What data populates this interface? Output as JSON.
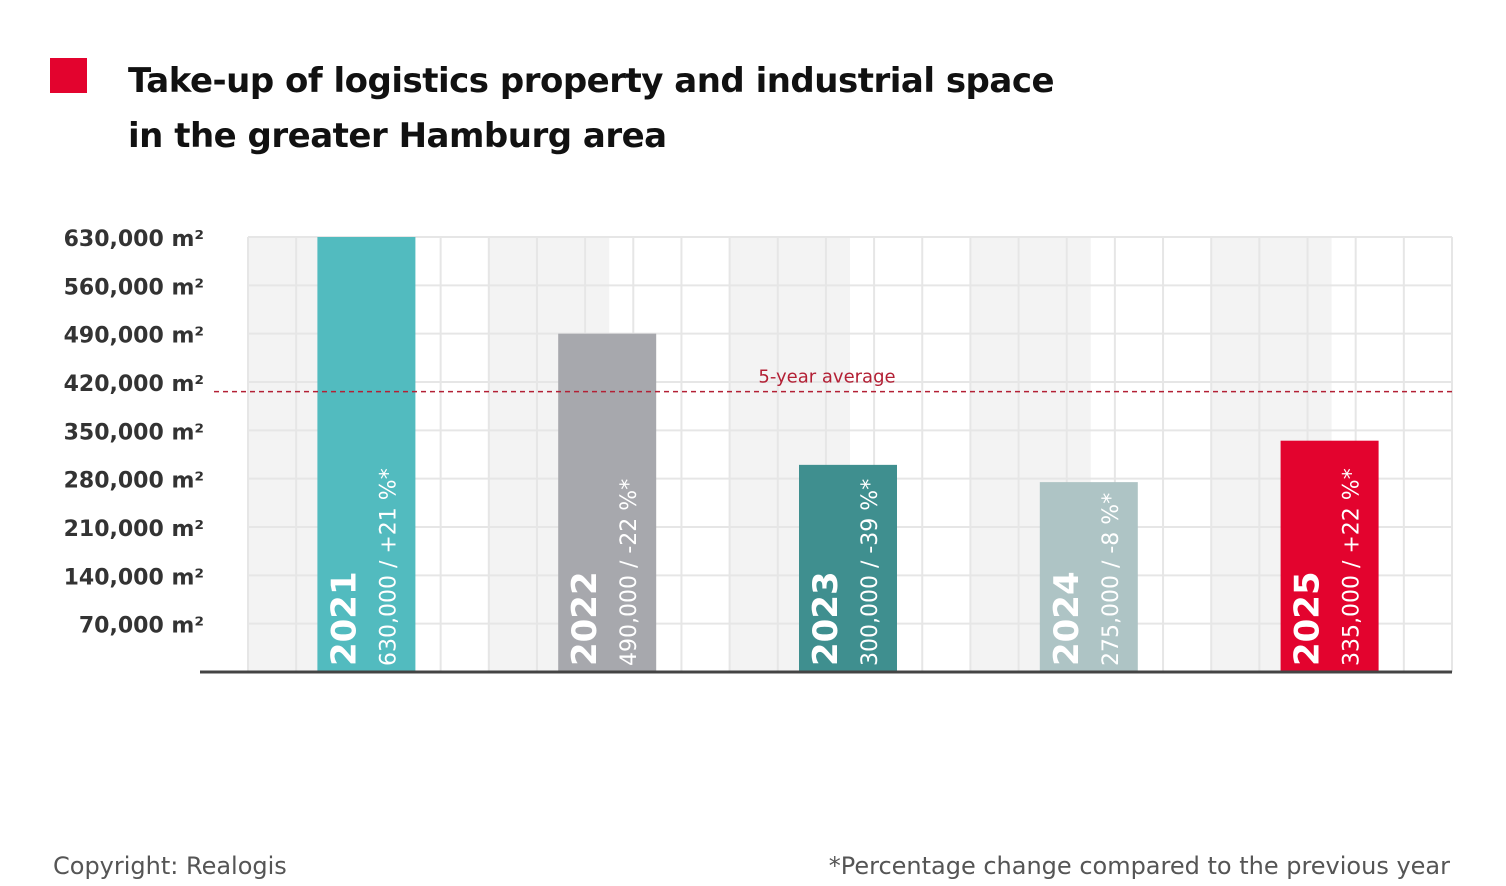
{
  "title": {
    "line1": "Take-up of logistics property and industrial space",
    "line2": "in the greater Hamburg area"
  },
  "colors": {
    "accent": "#e3032e",
    "average_line": "#b32035",
    "axis": "#444444",
    "grid_fill": "#f3f3f3",
    "grid_line": "#e6e6e6"
  },
  "chart_data": {
    "type": "bar",
    "categories": [
      "2021",
      "2022",
      "2023",
      "2024",
      "2025"
    ],
    "values": [
      630000,
      490000,
      300000,
      275000,
      335000
    ],
    "bar_labels": [
      "630,000 / +21 %*",
      "490,000 / -22 %*",
      "300,000 / -39 %*",
      "275,000 / -8 %*",
      "335,000 / +22 %*"
    ],
    "bar_colors": [
      "#52bbbf",
      "#a7a8ad",
      "#3f8f8f",
      "#aec4c5",
      "#e3032e"
    ],
    "yticks": [
      70000,
      140000,
      210000,
      280000,
      350000,
      420000,
      490000,
      560000,
      630000
    ],
    "ytick_labels": [
      "70,000 m²",
      "140,000 m²",
      "210,000 m²",
      "280,000 m²",
      "350,000 m²",
      "420,000 m²",
      "490,000 m²",
      "560,000 m²",
      "630,000 m²"
    ],
    "ylim": [
      0,
      630000
    ],
    "average": {
      "label": "5-year average",
      "value": 406000
    },
    "grid": true
  },
  "footer": {
    "copyright": "Copyright: Realogis",
    "note": "*Percentage change compared to the previous year"
  }
}
